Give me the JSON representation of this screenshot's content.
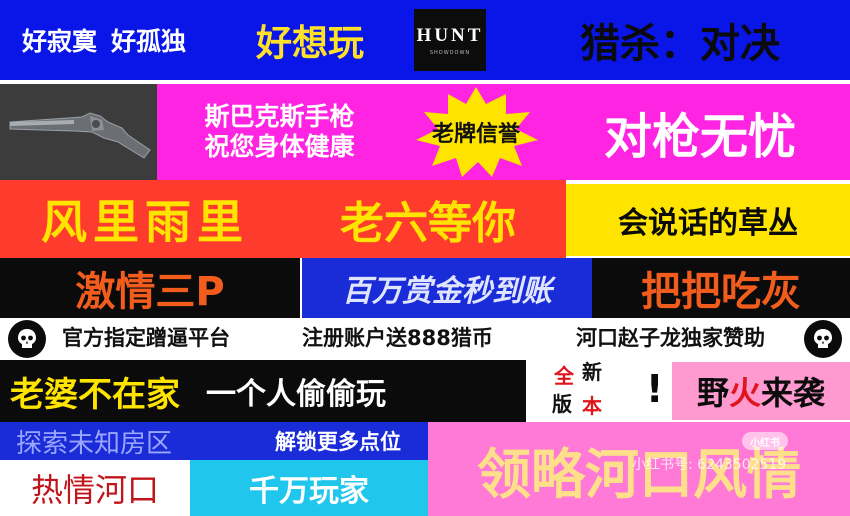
{
  "row1": {
    "lonely": "好寂寞",
    "lonely2": "好孤独",
    "want_play": "好想玩",
    "hunt_logo": "HUNT",
    "hunt_sub": "SHOWDOWN",
    "hunt_title": "猎杀：对决"
  },
  "row2": {
    "gun_icon": "revolver-pistol-icon",
    "spark_line1": "斯巴克斯手枪",
    "spark_line2": "祝您身体健康",
    "badge": "老牌信誉",
    "no_worry": "对枪无忧"
  },
  "row3": {
    "wind_rain": "风里雨里",
    "waiting": "老六等你",
    "grass": "会说话的草丛"
  },
  "row4": {
    "passion": "激情三P",
    "bounty": "百万赏金秒到账",
    "eat_ash": "把把吃灰"
  },
  "row5": {
    "skull_icon": "skull-icon",
    "official": "官方指定蹭逼平台",
    "register": "注册账户送888猎币",
    "sponsor": "河口赵子龙独家赞助"
  },
  "row6": {
    "wife_away": "老婆不在家",
    "play_alone": "一个人偷偷玩",
    "new_ver_1": "全",
    "new_ver_2": "新",
    "new_ver_3": "版",
    "new_ver_4": "本",
    "exclaim": "!",
    "wild_1": "野",
    "wild_2": "火",
    "wild_3": "来袭"
  },
  "row7": {
    "explore": "探索未知房区",
    "unlock": "解锁更多点位",
    "feel": "领略河口风情",
    "hot": "热情河口",
    "players": "千万玩家"
  },
  "watermark": {
    "badge": "小红书",
    "text": "小红书号: 6243502519"
  },
  "colors": {
    "blue": "#0a15e8",
    "magenta": "#ff23e2",
    "yellow": "#ffe400",
    "red": "#ff3b2e",
    "orange": "#f25d1d",
    "cyan": "#21c6ec",
    "pink": "#ff9ad0"
  }
}
